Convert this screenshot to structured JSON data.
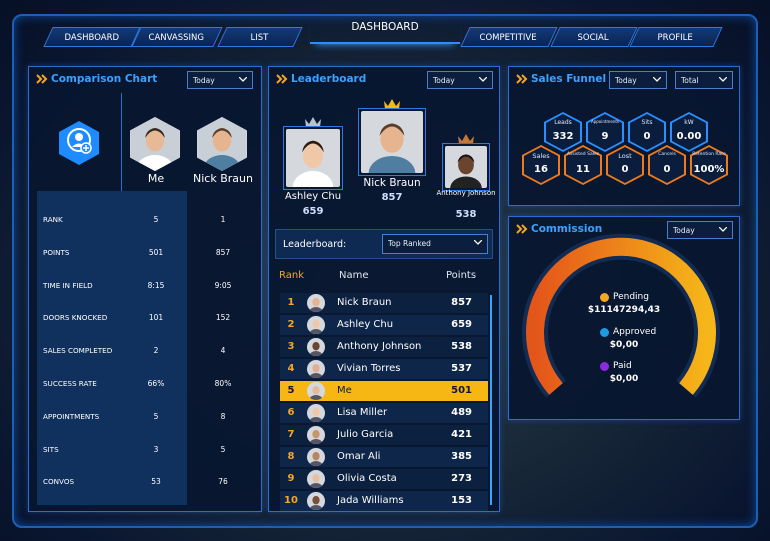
{
  "nav": {
    "tabs_left": [
      "DASHBOARD",
      "CANVASSING",
      "LIST"
    ],
    "title": "DASHBOARD",
    "tabs_right": [
      "COMPETITIVE",
      "SOCIAL",
      "PROFILE"
    ]
  },
  "comparison": {
    "title": "Comparison Chart",
    "period": "Today",
    "players": [
      "Me",
      "Nick Braun"
    ],
    "rows": [
      {
        "label": "RANK",
        "values": [
          5,
          1
        ]
      },
      {
        "label": "POINTS",
        "values": [
          501,
          857
        ]
      },
      {
        "label": "TIME IN FIELD",
        "values": [
          "8:15",
          "9:05"
        ]
      },
      {
        "label": "DOORS KNOCKED",
        "values": [
          101,
          152
        ]
      },
      {
        "label": "SALES COMPLETED",
        "values": [
          2,
          4
        ]
      },
      {
        "label": "SUCCESS RATE",
        "values": [
          "66%",
          "80%"
        ]
      },
      {
        "label": "APPOINTMENTS",
        "values": [
          5,
          8
        ]
      },
      {
        "label": "SITS",
        "values": [
          3,
          5
        ]
      },
      {
        "label": "CONVOS",
        "values": [
          53,
          76
        ]
      }
    ]
  },
  "leaderboard": {
    "title": "Leaderboard",
    "period": "Today",
    "podium": [
      {
        "name": "Ashley Chu",
        "points": 659
      },
      {
        "name": "Nick Braun",
        "points": 857
      },
      {
        "name": "Anthony Johnson",
        "points": 538
      }
    ],
    "filter_label": "Leaderboard:",
    "filter": "Top Ranked",
    "headers": [
      "Rank",
      "Name",
      "Points"
    ],
    "highlighted_row": 4,
    "rows": [
      [
        1,
        "Nick Braun",
        857
      ],
      [
        2,
        "Ashley Chu",
        659
      ],
      [
        3,
        "Anthony Johnson",
        538
      ],
      [
        4,
        "Vivian Torres",
        537
      ],
      [
        5,
        "Me",
        501
      ],
      [
        6,
        "Lisa Miller",
        489
      ],
      [
        7,
        "Julio Garcia",
        421
      ],
      [
        8,
        "Omar Ali",
        385
      ],
      [
        9,
        "Olivia Costa",
        273
      ],
      [
        10,
        "Jada Williams",
        153
      ]
    ]
  },
  "funnel": {
    "title": "Sales Funnel",
    "periods": [
      "Today",
      "Total"
    ],
    "stats": [
      {
        "label": "Leads",
        "value": 332
      },
      {
        "label": "Appointments",
        "value": 9
      },
      {
        "label": "Sits",
        "value": 0
      },
      {
        "label": "kW",
        "value": "0.00"
      }
    ],
    "outcomes": [
      {
        "label": "Sales",
        "value": 16
      },
      {
        "label": "Assisted Sales",
        "value": 11
      },
      {
        "label": "Lost",
        "value": 0
      },
      {
        "label": "Cancels",
        "value": 0
      },
      {
        "label": "Retention Rate",
        "value": "100%"
      }
    ]
  },
  "commission": {
    "title": "Commission",
    "period": "Today",
    "items": [
      {
        "label": "Pending",
        "value": "$11147294,43",
        "color": "#f5a623"
      },
      {
        "label": "Approved",
        "value": "$0,00",
        "color": "#1e9be0"
      },
      {
        "label": "Paid",
        "value": "$0,00",
        "color": "#8a2be2"
      }
    ]
  }
}
